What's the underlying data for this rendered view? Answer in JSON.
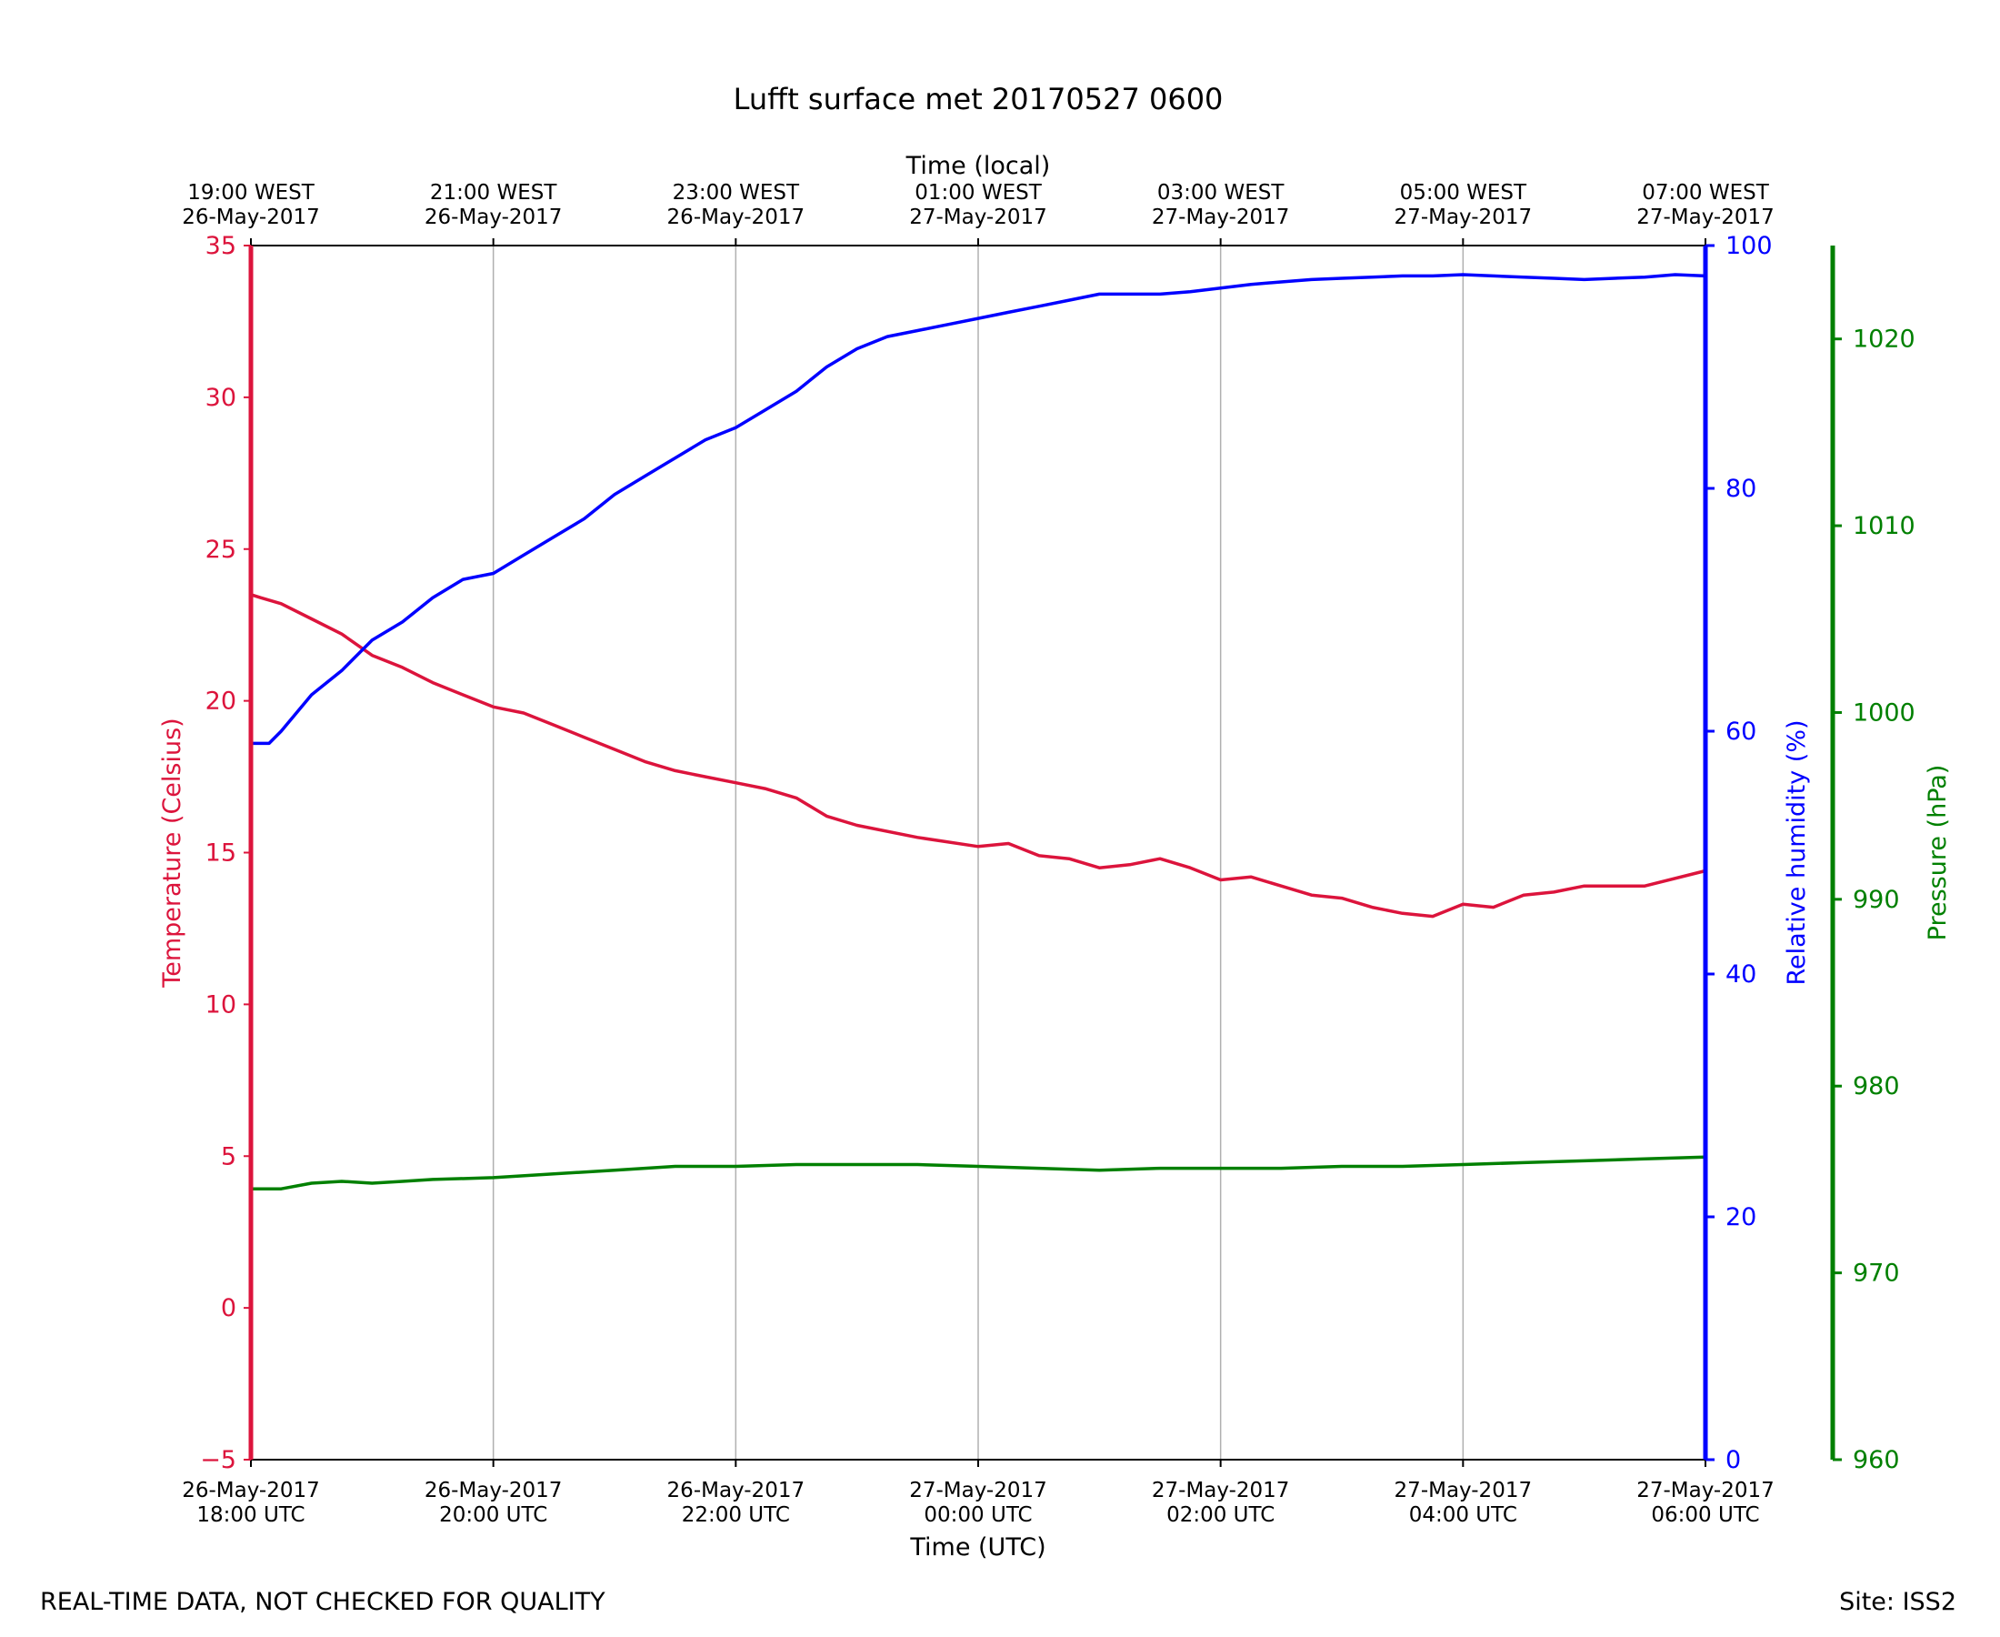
{
  "footer": {
    "quality_note": "REAL-TIME DATA, NOT CHECKED FOR QUALITY",
    "site": "Site: ISS2"
  },
  "chart_data": {
    "type": "line",
    "title": "Lufft surface met 20170527 0600",
    "xlabel": "Time (UTC)",
    "x2label": "Time (local)",
    "ylabel": "Temperature (Celsius)",
    "y2label": "Relative humidity (%)",
    "y3label": "Pressure (hPa)",
    "xlim": [
      0,
      12
    ],
    "ylim": [
      -5,
      35
    ],
    "y2lim": [
      0,
      100
    ],
    "y3lim": [
      960,
      1025
    ],
    "grid": "vertical",
    "x_ticks": [
      0,
      2,
      4,
      6,
      8,
      10,
      12
    ],
    "x_tick_labels": [
      [
        "26-May-2017",
        "18:00 UTC"
      ],
      [
        "26-May-2017",
        "20:00 UTC"
      ],
      [
        "26-May-2017",
        "22:00 UTC"
      ],
      [
        "27-May-2017",
        "00:00 UTC"
      ],
      [
        "27-May-2017",
        "02:00 UTC"
      ],
      [
        "27-May-2017",
        "04:00 UTC"
      ],
      [
        "27-May-2017",
        "06:00 UTC"
      ]
    ],
    "x2_tick_labels": [
      [
        "19:00 WEST",
        "26-May-2017"
      ],
      [
        "21:00 WEST",
        "26-May-2017"
      ],
      [
        "23:00 WEST",
        "26-May-2017"
      ],
      [
        "01:00 WEST",
        "27-May-2017"
      ],
      [
        "03:00 WEST",
        "27-May-2017"
      ],
      [
        "05:00 WEST",
        "27-May-2017"
      ],
      [
        "07:00 WEST",
        "27-May-2017"
      ]
    ],
    "y_ticks": [
      -5,
      0,
      5,
      10,
      15,
      20,
      25,
      30,
      35
    ],
    "y_tick_labels": [
      "−5",
      "0",
      "5",
      "10",
      "15",
      "20",
      "25",
      "30",
      "35"
    ],
    "y2_ticks": [
      0,
      20,
      40,
      60,
      80,
      100
    ],
    "y3_ticks": [
      960,
      970,
      980,
      990,
      1000,
      1010,
      1020
    ],
    "colors": {
      "temperature": "#dc143c",
      "humidity": "#0000ff",
      "pressure": "#008000",
      "grid": "#b0b0b0",
      "axis": "#000000"
    },
    "x_unit": "hours since 26-May-2017 18:00 UTC",
    "series": [
      {
        "axis": "temperature",
        "x": [
          0,
          0.08,
          0.25,
          0.5,
          0.75,
          1.0,
          1.25,
          1.5,
          1.75,
          2.0,
          2.25,
          2.5,
          2.75,
          3.0,
          3.25,
          3.5,
          3.75,
          4.0,
          4.25,
          4.5,
          4.75,
          5.0,
          5.5,
          6.0,
          6.25,
          6.5,
          6.75,
          7.0,
          7.25,
          7.5,
          7.75,
          8.0,
          8.25,
          8.5,
          8.75,
          9.0,
          9.25,
          9.5,
          9.75,
          10.0,
          10.25,
          10.5,
          10.75,
          11.0,
          11.5,
          12.0
        ],
        "values": [
          23.5,
          23.4,
          23.2,
          22.7,
          22.2,
          21.5,
          21.1,
          20.6,
          20.2,
          19.8,
          19.6,
          19.2,
          18.8,
          18.4,
          18.0,
          17.7,
          17.5,
          17.3,
          17.1,
          16.8,
          16.2,
          15.9,
          15.5,
          15.2,
          15.3,
          14.9,
          14.8,
          14.5,
          14.6,
          14.8,
          14.5,
          14.1,
          14.2,
          13.9,
          13.6,
          13.5,
          13.2,
          13.0,
          12.9,
          13.3,
          13.2,
          13.6,
          13.7,
          13.9,
          13.9,
          14.4
        ]
      },
      {
        "axis": "humidity",
        "x": [
          0,
          0.15,
          0.25,
          0.5,
          0.75,
          1.0,
          1.25,
          1.5,
          1.75,
          2.0,
          2.25,
          2.5,
          2.75,
          3.0,
          3.25,
          3.5,
          3.75,
          4.0,
          4.25,
          4.5,
          4.75,
          5.0,
          5.25,
          5.5,
          5.75,
          6.0,
          6.25,
          6.5,
          6.75,
          7.0,
          7.25,
          7.5,
          7.75,
          8.0,
          8.25,
          8.5,
          8.75,
          9.0,
          9.25,
          9.5,
          9.75,
          10.0,
          10.25,
          10.5,
          10.75,
          11.0,
          11.25,
          11.5,
          11.75,
          12.0
        ],
        "values": [
          59.0,
          59.0,
          60.0,
          63.0,
          65.0,
          67.5,
          69.0,
          71.0,
          72.5,
          73.0,
          74.5,
          76.0,
          77.5,
          79.5,
          81.0,
          82.5,
          84.0,
          85.0,
          86.5,
          88.0,
          90.0,
          91.5,
          92.5,
          93.0,
          93.5,
          94.0,
          94.5,
          95.0,
          95.5,
          96.0,
          96.0,
          96.0,
          96.2,
          96.5,
          96.8,
          97.0,
          97.2,
          97.3,
          97.4,
          97.5,
          97.5,
          97.6,
          97.5,
          97.4,
          97.3,
          97.2,
          97.3,
          97.4,
          97.6,
          97.5
        ]
      },
      {
        "axis": "pressure",
        "x": [
          0,
          0.25,
          0.5,
          0.75,
          1.0,
          1.25,
          1.5,
          2.0,
          2.5,
          3.0,
          3.5,
          4.0,
          4.5,
          5.0,
          5.5,
          6.0,
          6.5,
          7.0,
          7.5,
          8.0,
          8.5,
          9.0,
          9.5,
          10.0,
          10.5,
          11.0,
          11.5,
          12.0
        ],
        "values": [
          974.5,
          974.5,
          974.8,
          974.9,
          974.8,
          974.9,
          975.0,
          975.1,
          975.3,
          975.5,
          975.7,
          975.7,
          975.8,
          975.8,
          975.8,
          975.7,
          975.6,
          975.5,
          975.6,
          975.6,
          975.6,
          975.7,
          975.7,
          975.8,
          975.9,
          976.0,
          976.1,
          976.2
        ]
      }
    ]
  }
}
